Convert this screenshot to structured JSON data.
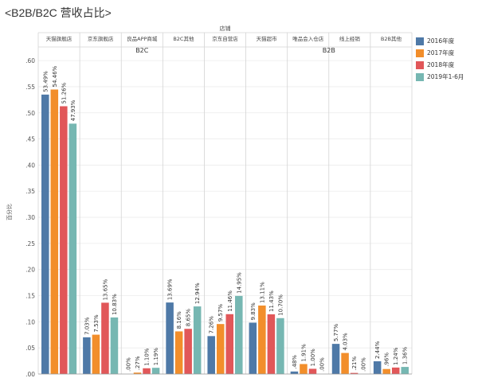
{
  "title": "<B2B/B2C 营收占比>",
  "chart_data": {
    "type": "bar",
    "header_label": "店铺",
    "ylabel": "百分比",
    "ylim": [
      0,
      0.62
    ],
    "yticks": [
      0,
      0.05,
      0.1,
      0.15,
      0.2,
      0.25,
      0.3,
      0.35,
      0.4,
      0.45,
      0.5,
      0.55,
      0.6
    ],
    "ytick_labels": [
      ".00",
      ".05",
      ".10",
      ".15",
      ".20",
      ".25",
      ".30",
      ".35",
      ".40",
      ".45",
      ".50",
      ".55",
      ".60"
    ],
    "groups": [
      {
        "label": "B2C",
        "span": [
          0,
          4
        ]
      },
      {
        "label": "B2B",
        "span": [
          5,
          8
        ]
      }
    ],
    "categories": [
      "天猫旗舰店",
      "京东旗舰店",
      "良品APP商城",
      "B2C其他",
      "京东自营店",
      "天猫超市",
      "唯品会入仓店",
      "线上经销",
      "B2B其他"
    ],
    "series": [
      {
        "name": "2016年度",
        "color": "#4e79a7",
        "values": [
          0.5349,
          0.0703,
          0.0,
          0.1369,
          0.0726,
          0.0983,
          0.0048,
          0.0577,
          0.0244
        ],
        "labels": [
          "53.49%",
          "7.03%",
          ".00%",
          "13.69%",
          "7.26%",
          "9.83%",
          ".48%",
          "5.77%",
          "2.44%"
        ]
      },
      {
        "name": "2017年度",
        "color": "#f28e2b",
        "values": [
          0.5446,
          0.0753,
          0.0027,
          0.0816,
          0.0957,
          0.1311,
          0.0191,
          0.0403,
          0.0096
        ],
        "labels": [
          "54.46%",
          "7.53%",
          ".27%",
          "8.16%",
          "9.57%",
          "13.11%",
          "1.91%",
          "4.03%",
          ".96%"
        ]
      },
      {
        "name": "2018年度",
        "color": "#e15759",
        "values": [
          0.5126,
          0.1365,
          0.011,
          0.0865,
          0.1146,
          0.1143,
          0.01,
          0.0021,
          0.0124
        ],
        "labels": [
          "51.26%",
          "13.65%",
          "1.10%",
          "8.65%",
          "11.46%",
          "11.43%",
          "1.00%",
          ".21%",
          "1.24%"
        ]
      },
      {
        "name": "2019年1-6月",
        "color": "#76b7b2",
        "values": [
          0.4793,
          0.1083,
          0.0119,
          0.1294,
          0.1495,
          0.107,
          0.0,
          0.0,
          0.0136
        ],
        "labels": [
          "47.93%",
          "10.83%",
          "1.19%",
          "12.94%",
          "14.95%",
          "10.70%",
          ".00%",
          ".00%",
          "1.36%"
        ]
      }
    ]
  }
}
